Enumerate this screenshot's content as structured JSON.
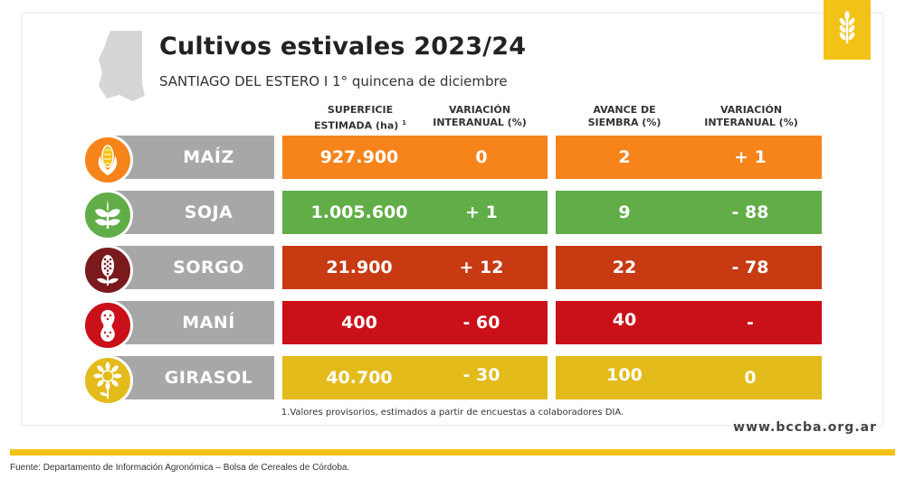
{
  "title": "Cultivos estivales 2023/24",
  "subtitle": "SANTIAGO DEL ESTERO I 1° quincena de diciembre",
  "headers": {
    "superficie_1": "SUPERFICIE",
    "superficie_2": "ESTIMADA (ha)",
    "superficie_sup": "1",
    "var1_1": "VARIACIÓN",
    "var1_2": "INTERANUAL (%)",
    "avance_1": "AVANCE DE",
    "avance_2": "SIEMBRA (%)",
    "var2_1": "VARIACIÓN",
    "var2_2": "INTERANUAL (%)"
  },
  "rows": [
    {
      "crop": "MAÍZ",
      "icon": "corn-icon",
      "color": "#f7841b",
      "superficie": "927.900",
      "var_sup": "0",
      "avance": "2",
      "var_avance": "+ 1"
    },
    {
      "crop": "SOJA",
      "icon": "soy-icon",
      "color": "#61ad47",
      "superficie": "1.005.600",
      "var_sup": "+ 1",
      "avance": "9",
      "var_avance": "- 88"
    },
    {
      "crop": "SORGO",
      "icon": "sorghum-icon",
      "color": "#c83a12",
      "icon_color": "#7b1a1c",
      "superficie": "21.900",
      "var_sup": "+ 12",
      "avance": "22",
      "var_avance": "- 78"
    },
    {
      "crop": "MANÍ",
      "icon": "peanut-icon",
      "color": "#ca1019",
      "superficie": "400",
      "var_sup": "- 60",
      "avance": "40",
      "var_avance": "-"
    },
    {
      "crop": "GIRASOL",
      "icon": "sunflower-icon",
      "color": "#e3bb1a",
      "superficie": "40.700",
      "var_sup": "- 30",
      "avance": "100",
      "var_avance": "0"
    }
  ],
  "footnote": "1.Valores provisorios, estimados a partir de encuestas a colaboradores DIA.",
  "url": "www.bccba.org.ar",
  "source": "Fuente: Departamento de Información Agronómica – Bolsa de Cereales de Córdoba."
}
